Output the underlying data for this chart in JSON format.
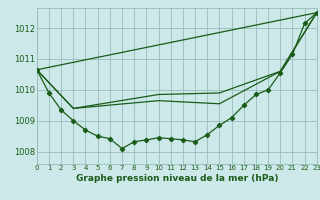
{
  "title": "Graphe pression niveau de la mer (hPa)",
  "background_color": "#cce8e8",
  "grid_color": "#99bbbb",
  "line_color": "#1a5c1a",
  "xlim": [
    0,
    23
  ],
  "ylim": [
    1007.6,
    1012.65
  ],
  "yticks": [
    1008,
    1009,
    1010,
    1011,
    1012
  ],
  "xticks": [
    0,
    1,
    2,
    3,
    4,
    5,
    6,
    7,
    8,
    9,
    10,
    11,
    12,
    13,
    14,
    15,
    16,
    17,
    18,
    19,
    20,
    21,
    22,
    23
  ],
  "main_x": [
    0,
    1,
    2,
    3,
    4,
    5,
    6,
    7,
    8,
    9,
    10,
    11,
    12,
    13,
    14,
    15,
    16,
    17,
    18,
    19,
    20,
    21,
    22,
    23
  ],
  "main_y": [
    1010.65,
    1009.9,
    1009.35,
    1009.0,
    1008.7,
    1008.5,
    1008.42,
    1008.1,
    1008.32,
    1008.38,
    1008.45,
    1008.42,
    1008.38,
    1008.32,
    1008.55,
    1008.85,
    1009.1,
    1009.5,
    1009.85,
    1010.0,
    1010.55,
    1011.15,
    1012.15,
    1012.5
  ],
  "line1_x": [
    0,
    23
  ],
  "line1_y": [
    1010.65,
    1012.5
  ],
  "line2_x": [
    0,
    3,
    10,
    15,
    20,
    23
  ],
  "line2_y": [
    1010.65,
    1009.4,
    1009.85,
    1009.9,
    1010.6,
    1012.5
  ],
  "line3_x": [
    0,
    3,
    10,
    15,
    20,
    23
  ],
  "line3_y": [
    1010.65,
    1009.4,
    1009.65,
    1009.55,
    1010.6,
    1012.5
  ]
}
